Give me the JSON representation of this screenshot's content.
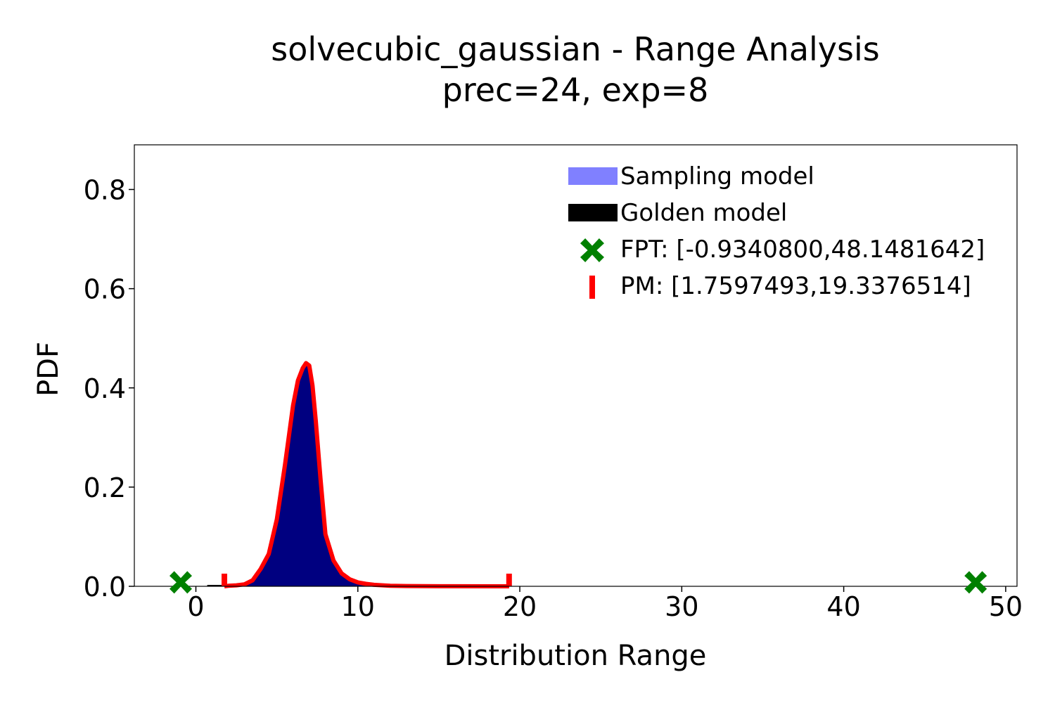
{
  "chart_data": {
    "type": "area",
    "title": "solvecubic_gaussian - Range Analysis",
    "subtitle": "prec=24, exp=8",
    "xlabel": "Distribution Range",
    "ylabel": "PDF",
    "xlim": [
      -3.8,
      50.7
    ],
    "ylim": [
      0,
      0.89
    ],
    "xticks": [
      0,
      10,
      20,
      30,
      40,
      50
    ],
    "xtick_labels": [
      "0",
      "10",
      "20",
      "30",
      "40",
      "50"
    ],
    "yticks": [
      0.0,
      0.2,
      0.4,
      0.6,
      0.8
    ],
    "ytick_labels": [
      "0.0",
      "0.2",
      "0.4",
      "0.6",
      "0.8"
    ],
    "grid": false,
    "legend_position": "top-right",
    "colors": {
      "sampling": "#8080ff",
      "golden_fill": "#000080",
      "golden_legend": "#000000",
      "pm": "#ff0000",
      "fpt": "#008000"
    },
    "series": [
      {
        "name": "Sampling model",
        "x": [
          0.7,
          1.0,
          1.5,
          2.0,
          2.5,
          3.0,
          3.5,
          4.0,
          4.5,
          5.0,
          5.5,
          6.0,
          6.3,
          6.6,
          6.8,
          7.0,
          7.2,
          7.4,
          7.7,
          8.0,
          8.5,
          9.0,
          9.5,
          10.0,
          10.5,
          11.0,
          12.0,
          13.0,
          15.0,
          19.3
        ],
        "y": [
          0.0,
          0.0,
          0.0005,
          0.001,
          0.002,
          0.004,
          0.01,
          0.03,
          0.06,
          0.13,
          0.24,
          0.36,
          0.41,
          0.44,
          0.45,
          0.44,
          0.4,
          0.33,
          0.21,
          0.1,
          0.05,
          0.025,
          0.013,
          0.007,
          0.004,
          0.002,
          0.001,
          0.0005,
          0.0002,
          0.0
        ]
      },
      {
        "name": "Golden model",
        "x": [
          0.7,
          1.0,
          1.5,
          2.0,
          2.5,
          3.0,
          3.5,
          4.0,
          4.5,
          5.0,
          5.5,
          6.0,
          6.3,
          6.6,
          6.8,
          7.0,
          7.2,
          7.4,
          7.7,
          8.0,
          8.5,
          9.0,
          9.5,
          10.0,
          10.5,
          11.0,
          12.0,
          13.0,
          15.0,
          19.3
        ],
        "y": [
          0.0,
          0.0,
          0.0005,
          0.001,
          0.002,
          0.004,
          0.01,
          0.03,
          0.06,
          0.13,
          0.24,
          0.36,
          0.41,
          0.44,
          0.45,
          0.44,
          0.4,
          0.33,
          0.21,
          0.1,
          0.05,
          0.025,
          0.013,
          0.007,
          0.004,
          0.002,
          0.001,
          0.0005,
          0.0002,
          0.0
        ]
      },
      {
        "name": "FPT: [-0.9340800,48.1481642]",
        "x": [
          -0.93408,
          48.1481642
        ],
        "y": [
          0.008,
          0.008
        ]
      },
      {
        "name": "PM: [1.7597493,19.3376514]",
        "x": [
          1.7597493,
          19.3376514
        ],
        "y": [
          0.0,
          0.0
        ]
      }
    ],
    "pm_curve": {
      "x": [
        1.76,
        2.0,
        2.5,
        3.0,
        3.5,
        4.0,
        4.5,
        5.0,
        5.5,
        6.0,
        6.3,
        6.6,
        6.8,
        7.0,
        7.2,
        7.4,
        7.7,
        8.0,
        8.5,
        9.0,
        9.5,
        10.0,
        10.5,
        11.0,
        12.0,
        13.0,
        15.0,
        19.34
      ],
      "y": [
        0.0,
        0.001,
        0.002,
        0.004,
        0.012,
        0.035,
        0.065,
        0.135,
        0.245,
        0.365,
        0.415,
        0.44,
        0.45,
        0.445,
        0.405,
        0.335,
        0.215,
        0.105,
        0.052,
        0.026,
        0.014,
        0.008,
        0.005,
        0.003,
        0.001,
        0.0006,
        0.0002,
        0.0
      ]
    }
  }
}
